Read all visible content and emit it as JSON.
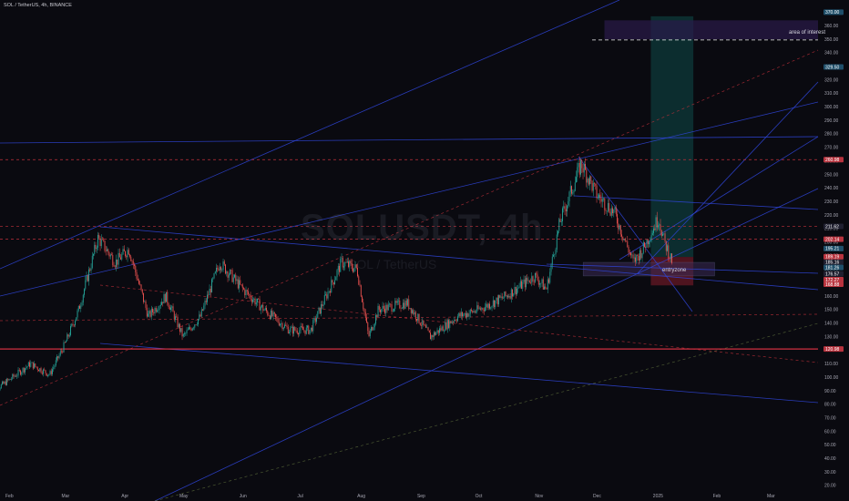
{
  "header": {
    "symbol_title": "SOL / TetherUS, 4h, BINANCE",
    "watermark_main": "SOLUSDT, 4h",
    "watermark_sub": "SOL / TetherUS"
  },
  "annotations": {
    "area_of_interest": "area of interest",
    "entryzone": "entryzone"
  },
  "colors": {
    "background": "#0a0a10",
    "candle_up": "#26a69a",
    "candle_down": "#ef5350",
    "trendline_blue": "#2f45d8",
    "dashed_red": "#c0303a",
    "long_target": "#0e3a3a",
    "long_stop": "#5a1622",
    "interest_zone": "#2a1a4a"
  },
  "chart_data": {
    "type": "candlestick",
    "title": "SOL / TetherUS, 4h, BINANCE",
    "ylim": [
      20,
      375
    ],
    "y_ticks": [
      20,
      30,
      40,
      50,
      60,
      70,
      80,
      90,
      100,
      110,
      120,
      130,
      140,
      150,
      160,
      170,
      180,
      190,
      200,
      210,
      220,
      230,
      240,
      250,
      260,
      270,
      280,
      290,
      300,
      310,
      320,
      330,
      340,
      350,
      360,
      370
    ],
    "x_ticks": [
      "Feb",
      "Mar",
      "Apr",
      "May",
      "Jun",
      "Jul",
      "Aug",
      "Sep",
      "Oct",
      "Nov",
      "Dec",
      "2025",
      "Feb",
      "Mar"
    ],
    "x_tick_dates": [
      "2024-02-01",
      "2024-03-01",
      "2024-04-01",
      "2024-05-01",
      "2024-06-01",
      "2024-07-01",
      "2024-08-01",
      "2024-09-01",
      "2024-10-01",
      "2024-11-01",
      "2024-12-01",
      "2025-01-01",
      "2025-02-01",
      "2025-03-01"
    ],
    "price_path": [
      {
        "date": "2024-01-22",
        "price": 88
      },
      {
        "date": "2024-02-01",
        "price": 98
      },
      {
        "date": "2024-02-12",
        "price": 110
      },
      {
        "date": "2024-02-22",
        "price": 102
      },
      {
        "date": "2024-03-01",
        "price": 125
      },
      {
        "date": "2024-03-08",
        "price": 150
      },
      {
        "date": "2024-03-18",
        "price": 203
      },
      {
        "date": "2024-03-27",
        "price": 185
      },
      {
        "date": "2024-04-03",
        "price": 195
      },
      {
        "date": "2024-04-13",
        "price": 145
      },
      {
        "date": "2024-04-22",
        "price": 160
      },
      {
        "date": "2024-05-01",
        "price": 130
      },
      {
        "date": "2024-05-10",
        "price": 145
      },
      {
        "date": "2024-05-20",
        "price": 185
      },
      {
        "date": "2024-06-01",
        "price": 165
      },
      {
        "date": "2024-06-12",
        "price": 150
      },
      {
        "date": "2024-06-25",
        "price": 135
      },
      {
        "date": "2024-07-06",
        "price": 135
      },
      {
        "date": "2024-07-22",
        "price": 185
      },
      {
        "date": "2024-07-30",
        "price": 180
      },
      {
        "date": "2024-08-05",
        "price": 130
      },
      {
        "date": "2024-08-10",
        "price": 150
      },
      {
        "date": "2024-08-25",
        "price": 155
      },
      {
        "date": "2024-09-06",
        "price": 130
      },
      {
        "date": "2024-09-20",
        "price": 145
      },
      {
        "date": "2024-10-01",
        "price": 150
      },
      {
        "date": "2024-10-15",
        "price": 160
      },
      {
        "date": "2024-10-30",
        "price": 175
      },
      {
        "date": "2024-11-05",
        "price": 165
      },
      {
        "date": "2024-11-12",
        "price": 215
      },
      {
        "date": "2024-11-23",
        "price": 258
      },
      {
        "date": "2024-12-01",
        "price": 235
      },
      {
        "date": "2024-12-10",
        "price": 222
      },
      {
        "date": "2024-12-20",
        "price": 185
      },
      {
        "date": "2024-12-25",
        "price": 195
      },
      {
        "date": "2025-01-02",
        "price": 218
      },
      {
        "date": "2025-01-05",
        "price": 200
      },
      {
        "date": "2025-01-09",
        "price": 186
      }
    ],
    "horizontal_levels": [
      {
        "price": 349.5,
        "style": "dashed-white"
      },
      {
        "price": 260.98,
        "style": "dashed-red"
      },
      {
        "price": 211.62,
        "style": "dashed-red"
      },
      {
        "price": 202.14,
        "style": "dashed-red"
      },
      {
        "price": 120.98,
        "style": "solid-red"
      }
    ],
    "long_position": {
      "start": "2024-12-29",
      "end": "2025-01-20",
      "target": 367,
      "entry": 189,
      "stop": 168
    },
    "interest_zone": {
      "start": "2024-12-05",
      "end": "2025-03-31",
      "low": 350,
      "high": 364
    },
    "entry_zone": {
      "start": "2024-11-24",
      "end": "2025-01-31",
      "low": 175,
      "high": 185
    },
    "price_tags": [
      {
        "label": "370.00",
        "price": 370.0,
        "color": "#1f4f6a"
      },
      {
        "label": "329.50",
        "price": 329.5,
        "color": "#1f4f6a"
      },
      {
        "label": "260.98",
        "price": 260.98,
        "color": "#b8333e"
      },
      {
        "label": "211.62",
        "price": 211.62,
        "color": "#202030"
      },
      {
        "label": "202.14",
        "price": 202.14,
        "color": "#b8333e"
      },
      {
        "label": "195.21",
        "price": 195.21,
        "color": "#1f4f6a"
      },
      {
        "label": "189.19",
        "price": 189.19,
        "color": "#b8333e"
      },
      {
        "label": "185.16",
        "price": 185.16,
        "color": "#202030"
      },
      {
        "label": "181.26",
        "price": 181.26,
        "color": "#1f4f6a"
      },
      {
        "label": "176.57",
        "price": 176.57,
        "color": "#202030"
      },
      {
        "label": "172.27",
        "price": 172.27,
        "color": "#b8333e"
      },
      {
        "label": "168.88",
        "price": 168.88,
        "color": "#b8333e"
      },
      {
        "label": "120.98",
        "price": 120.98,
        "color": "#b8333e"
      }
    ]
  }
}
